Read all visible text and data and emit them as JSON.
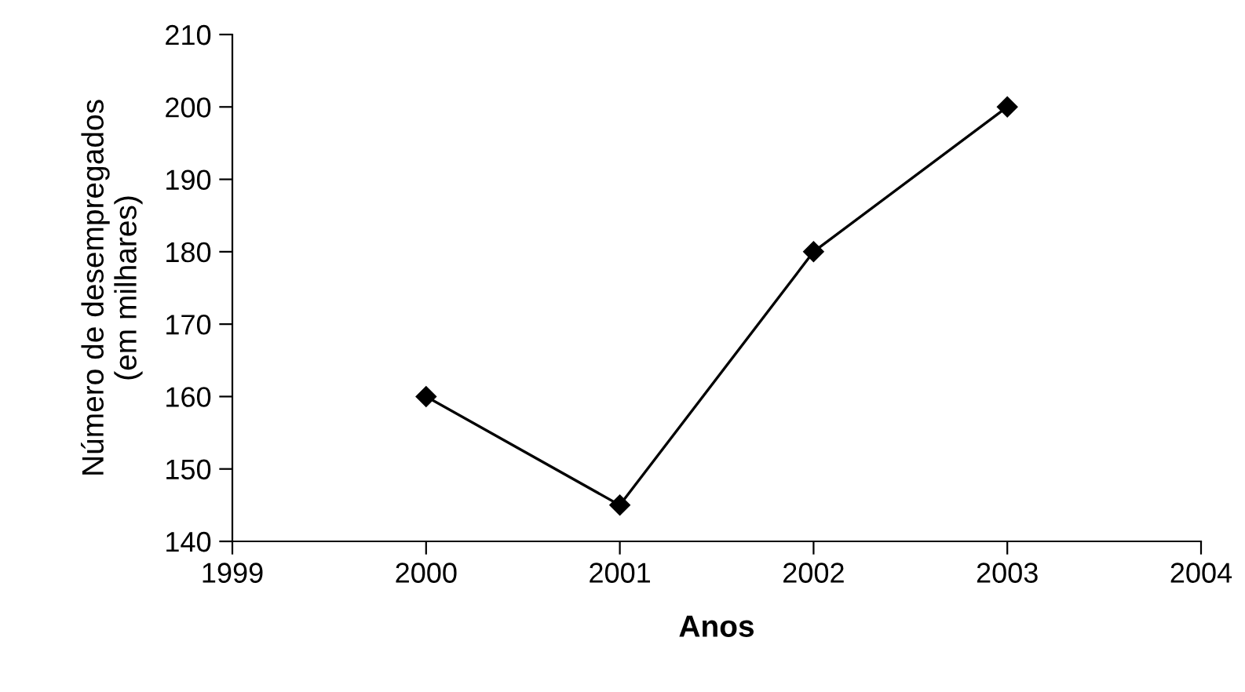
{
  "chart_data": {
    "type": "line",
    "xlabel": "Anos",
    "ylabel": "Número de desempregados\n(em milhares)",
    "x": [
      2000,
      2001,
      2002,
      2003
    ],
    "series": [
      {
        "color": "#000000",
        "values": [
          160,
          145,
          180,
          200
        ]
      }
    ],
    "xlim": [
      1999,
      2004
    ],
    "xticks": [
      1999,
      2000,
      2001,
      2002,
      2003,
      2004
    ],
    "ylim": [
      140,
      210
    ],
    "yticks": [
      140,
      150,
      160,
      170,
      180,
      190,
      200,
      210
    ],
    "marker": "diamond",
    "line_style": "solid",
    "grid": false,
    "legend": false
  }
}
